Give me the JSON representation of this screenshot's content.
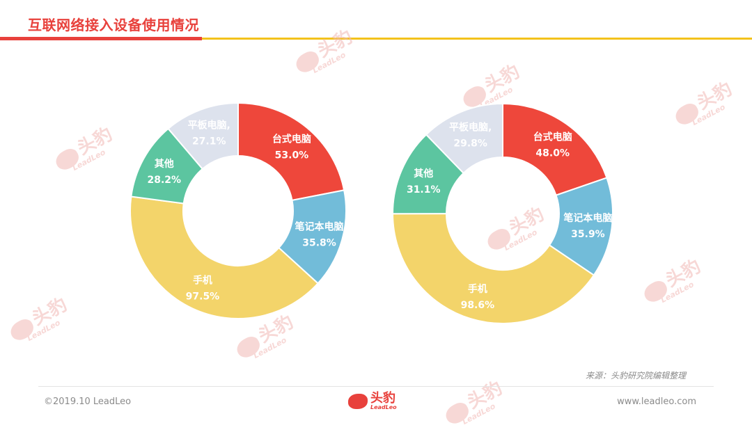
{
  "page": {
    "title": "互联网络接入设备使用情况",
    "source": "来源：头豹研究院编辑整理",
    "copyright": "©2019.10 LeadLeo",
    "website": "www.leadleo.com",
    "brand_cn": "头豹",
    "brand_en": "LeadLeo"
  },
  "colors": {
    "title_red": "#e8413c",
    "accent_yellow": "#f3c21b",
    "desktop": "#ee473b",
    "laptop": "#72bcd9",
    "phone": "#f3d46a",
    "other": "#5cc5a0",
    "tablet": "#dde2ed"
  },
  "chart_data": [
    {
      "type": "pie",
      "donut": true,
      "slices": [
        {
          "label": "台式电脑",
          "value": 53.0,
          "display": "53.0%",
          "color": "#ee473b",
          "text_color": "#ffffff"
        },
        {
          "label": "笔记本电脑",
          "value": 35.8,
          "display": "35.8%",
          "color": "#72bcd9",
          "text_color": "#ffffff"
        },
        {
          "label": "手机",
          "value": 97.5,
          "display": "97.5%",
          "color": "#f3d46a",
          "text_color": "#ffffff"
        },
        {
          "label": "其他",
          "value": 28.2,
          "display": "28.2%",
          "color": "#5cc5a0",
          "text_color": "#ffffff"
        },
        {
          "label": "平板电脑,",
          "value": 27.1,
          "display": "27.1%",
          "color": "#dde2ed",
          "text_color": "#ffffff"
        }
      ]
    },
    {
      "type": "pie",
      "donut": true,
      "slices": [
        {
          "label": "台式电脑",
          "value": 48.0,
          "display": "48.0%",
          "color": "#ee473b",
          "text_color": "#ffffff"
        },
        {
          "label": "笔记本电脑",
          "value": 35.9,
          "display": "35.9%",
          "color": "#72bcd9",
          "text_color": "#ffffff"
        },
        {
          "label": "手机",
          "value": 98.6,
          "display": "98.6%",
          "color": "#f3d46a",
          "text_color": "#ffffff"
        },
        {
          "label": "其他",
          "value": 31.1,
          "display": "31.1%",
          "color": "#5cc5a0",
          "text_color": "#ffffff"
        },
        {
          "label": "平板电脑,",
          "value": 29.8,
          "display": "29.8%",
          "color": "#dde2ed",
          "text_color": "#ffffff"
        }
      ]
    }
  ]
}
